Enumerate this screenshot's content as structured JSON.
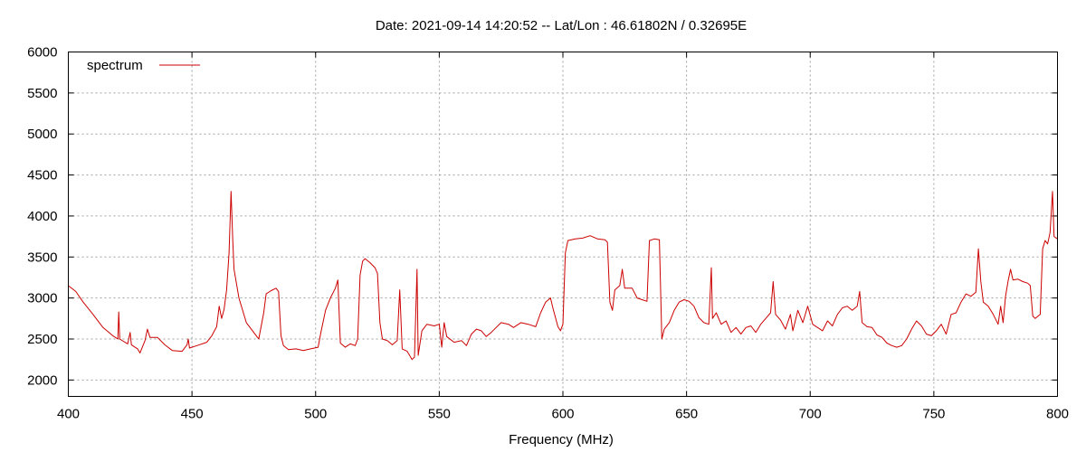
{
  "chart_data": {
    "type": "line",
    "title": "Date: 2021-09-14 14:20:52  --  Lat/Lon : 46.61802N / 0.32695E",
    "xlabel": "Frequency (MHz)",
    "ylabel": "",
    "xlim": [
      400,
      800
    ],
    "ylim": [
      1800,
      6000
    ],
    "x_ticks": [
      400,
      450,
      500,
      550,
      600,
      650,
      700,
      750,
      800
    ],
    "y_ticks": [
      2000,
      2500,
      3000,
      3500,
      4000,
      4500,
      5000,
      5500,
      6000
    ],
    "grid": true,
    "legend_position": "top-left",
    "series": [
      {
        "name": "spectrum",
        "color": "#cc0000",
        "points": [
          [
            400,
            3150
          ],
          [
            403,
            3080
          ],
          [
            406,
            2950
          ],
          [
            410,
            2800
          ],
          [
            414,
            2640
          ],
          [
            418,
            2540
          ],
          [
            420,
            2500
          ],
          [
            420.4,
            2830
          ],
          [
            420.8,
            2500
          ],
          [
            424,
            2440
          ],
          [
            425,
            2580
          ],
          [
            425.5,
            2430
          ],
          [
            428,
            2380
          ],
          [
            429,
            2330
          ],
          [
            431,
            2480
          ],
          [
            432,
            2620
          ],
          [
            433,
            2520
          ],
          [
            436,
            2520
          ],
          [
            439,
            2430
          ],
          [
            442,
            2360
          ],
          [
            446,
            2350
          ],
          [
            448,
            2430
          ],
          [
            448.5,
            2500
          ],
          [
            449,
            2390
          ],
          [
            452,
            2420
          ],
          [
            456,
            2460
          ],
          [
            458,
            2540
          ],
          [
            460,
            2650
          ],
          [
            461,
            2900
          ],
          [
            462,
            2750
          ],
          [
            463,
            2860
          ],
          [
            464,
            3100
          ],
          [
            465,
            3550
          ],
          [
            465.8,
            4300
          ],
          [
            466.5,
            3700
          ],
          [
            467,
            3350
          ],
          [
            469,
            3000
          ],
          [
            472,
            2700
          ],
          [
            476,
            2540
          ],
          [
            477,
            2500
          ],
          [
            479,
            2820
          ],
          [
            480,
            3050
          ],
          [
            482,
            3090
          ],
          [
            484,
            3120
          ],
          [
            485,
            3080
          ],
          [
            486,
            2540
          ],
          [
            487,
            2420
          ],
          [
            489,
            2370
          ],
          [
            492,
            2380
          ],
          [
            495,
            2360
          ],
          [
            498,
            2380
          ],
          [
            501,
            2400
          ],
          [
            502,
            2560
          ],
          [
            504,
            2850
          ],
          [
            506,
            3000
          ],
          [
            508,
            3120
          ],
          [
            509,
            3220
          ],
          [
            510,
            2450
          ],
          [
            512,
            2400
          ],
          [
            514,
            2440
          ],
          [
            516,
            2420
          ],
          [
            517,
            2500
          ],
          [
            518,
            3280
          ],
          [
            519,
            3450
          ],
          [
            520,
            3480
          ],
          [
            522,
            3430
          ],
          [
            524,
            3370
          ],
          [
            525,
            3300
          ],
          [
            526,
            2700
          ],
          [
            527,
            2500
          ],
          [
            529,
            2480
          ],
          [
            531,
            2430
          ],
          [
            533,
            2480
          ],
          [
            534,
            3100
          ],
          [
            535,
            2380
          ],
          [
            537,
            2350
          ],
          [
            538,
            2300
          ],
          [
            539,
            2250
          ],
          [
            540,
            2280
          ],
          [
            541,
            3350
          ],
          [
            541.5,
            2300
          ],
          [
            543,
            2600
          ],
          [
            545,
            2680
          ],
          [
            548,
            2660
          ],
          [
            550,
            2680
          ],
          [
            551,
            2400
          ],
          [
            552,
            2700
          ],
          [
            553,
            2530
          ],
          [
            556,
            2460
          ],
          [
            559,
            2480
          ],
          [
            561,
            2420
          ],
          [
            563,
            2560
          ],
          [
            565,
            2620
          ],
          [
            567,
            2600
          ],
          [
            569,
            2530
          ],
          [
            571,
            2580
          ],
          [
            573,
            2640
          ],
          [
            575,
            2700
          ],
          [
            578,
            2680
          ],
          [
            580,
            2640
          ],
          [
            583,
            2700
          ],
          [
            586,
            2680
          ],
          [
            589,
            2650
          ],
          [
            591,
            2820
          ],
          [
            593,
            2950
          ],
          [
            595,
            3000
          ],
          [
            596,
            2870
          ],
          [
            597,
            2760
          ],
          [
            598,
            2650
          ],
          [
            599,
            2600
          ],
          [
            600,
            2680
          ],
          [
            601,
            3550
          ],
          [
            602,
            3700
          ],
          [
            605,
            3720
          ],
          [
            608,
            3730
          ],
          [
            611,
            3760
          ],
          [
            614,
            3720
          ],
          [
            617,
            3710
          ],
          [
            618,
            3680
          ],
          [
            619,
            2950
          ],
          [
            620,
            2850
          ],
          [
            621,
            3100
          ],
          [
            623,
            3150
          ],
          [
            624,
            3350
          ],
          [
            625,
            3120
          ],
          [
            628,
            3120
          ],
          [
            630,
            3000
          ],
          [
            632,
            2980
          ],
          [
            634,
            2960
          ],
          [
            635,
            3700
          ],
          [
            637,
            3720
          ],
          [
            639,
            3710
          ],
          [
            640,
            2500
          ],
          [
            641,
            2620
          ],
          [
            643,
            2700
          ],
          [
            645,
            2850
          ],
          [
            647,
            2950
          ],
          [
            649,
            2980
          ],
          [
            651,
            2960
          ],
          [
            653,
            2900
          ],
          [
            655,
            2760
          ],
          [
            657,
            2700
          ],
          [
            659,
            2680
          ],
          [
            660,
            3370
          ],
          [
            660.5,
            2750
          ],
          [
            662,
            2820
          ],
          [
            664,
            2680
          ],
          [
            666,
            2720
          ],
          [
            668,
            2580
          ],
          [
            670,
            2640
          ],
          [
            672,
            2560
          ],
          [
            674,
            2640
          ],
          [
            676,
            2660
          ],
          [
            678,
            2580
          ],
          [
            680,
            2680
          ],
          [
            682,
            2750
          ],
          [
            684,
            2820
          ],
          [
            685,
            3200
          ],
          [
            686,
            2800
          ],
          [
            688,
            2730
          ],
          [
            690,
            2620
          ],
          [
            692,
            2800
          ],
          [
            693,
            2600
          ],
          [
            695,
            2850
          ],
          [
            697,
            2700
          ],
          [
            699,
            2900
          ],
          [
            701,
            2680
          ],
          [
            703,
            2640
          ],
          [
            705,
            2600
          ],
          [
            707,
            2720
          ],
          [
            709,
            2660
          ],
          [
            711,
            2800
          ],
          [
            713,
            2880
          ],
          [
            715,
            2900
          ],
          [
            717,
            2850
          ],
          [
            719,
            2900
          ],
          [
            720,
            3080
          ],
          [
            721,
            2700
          ],
          [
            723,
            2650
          ],
          [
            725,
            2640
          ],
          [
            727,
            2550
          ],
          [
            729,
            2520
          ],
          [
            731,
            2450
          ],
          [
            733,
            2420
          ],
          [
            735,
            2400
          ],
          [
            737,
            2420
          ],
          [
            739,
            2500
          ],
          [
            741,
            2620
          ],
          [
            743,
            2720
          ],
          [
            745,
            2660
          ],
          [
            747,
            2560
          ],
          [
            749,
            2540
          ],
          [
            751,
            2600
          ],
          [
            753,
            2680
          ],
          [
            755,
            2560
          ],
          [
            757,
            2800
          ],
          [
            759,
            2820
          ],
          [
            761,
            2950
          ],
          [
            763,
            3050
          ],
          [
            765,
            3020
          ],
          [
            767,
            3070
          ],
          [
            768,
            3600
          ],
          [
            769,
            3200
          ],
          [
            770,
            2950
          ],
          [
            772,
            2900
          ],
          [
            774,
            2800
          ],
          [
            776,
            2680
          ],
          [
            777,
            2900
          ],
          [
            778,
            2700
          ],
          [
            779,
            3020
          ],
          [
            780,
            3200
          ],
          [
            781,
            3350
          ],
          [
            782,
            3220
          ],
          [
            784,
            3230
          ],
          [
            786,
            3200
          ],
          [
            788,
            3180
          ],
          [
            789,
            3150
          ],
          [
            790,
            2780
          ],
          [
            791,
            2750
          ],
          [
            793,
            2800
          ],
          [
            794,
            3600
          ],
          [
            795,
            3700
          ],
          [
            796,
            3660
          ],
          [
            797,
            3800
          ],
          [
            798,
            4300
          ],
          [
            798.6,
            3750
          ],
          [
            800,
            3720
          ]
        ]
      }
    ]
  }
}
